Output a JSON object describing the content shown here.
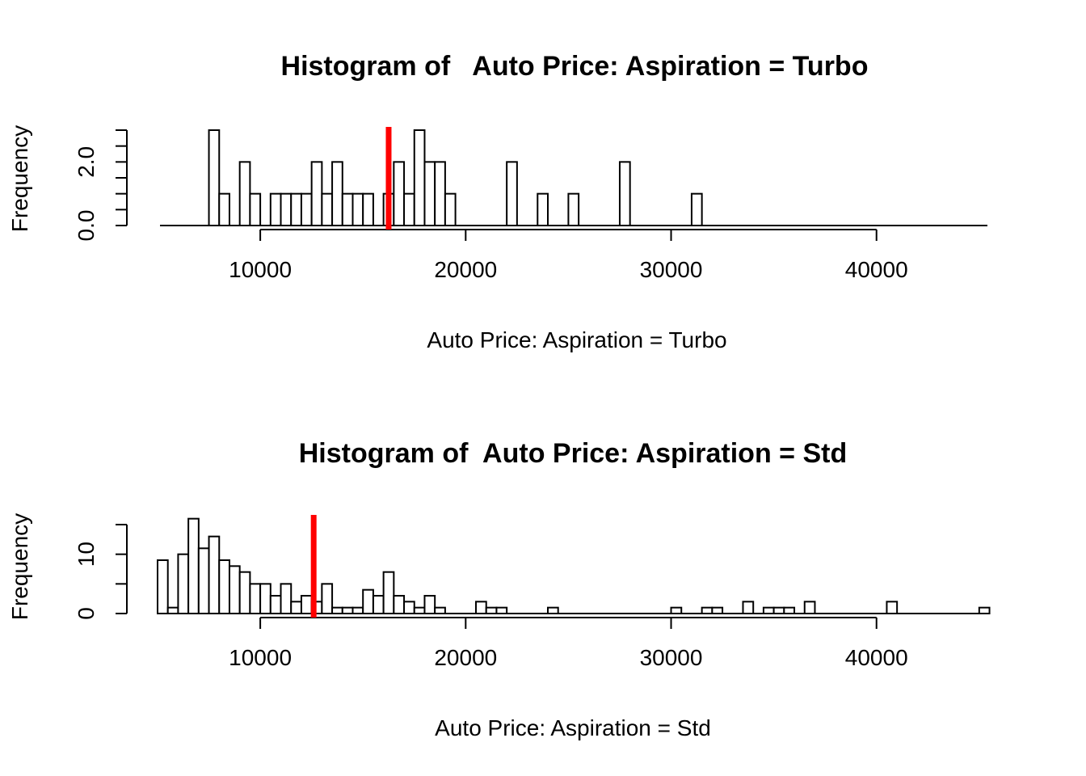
{
  "chart_data": [
    {
      "type": "bar",
      "subtype": "histogram",
      "title": "Histogram of   Auto Price: Aspiration = Turbo",
      "xlabel": "Auto Price: Aspiration = Turbo",
      "ylabel": "Frequency",
      "xlim": [
        5118,
        45400
      ],
      "ylim": [
        0,
        3
      ],
      "bin_width": 500,
      "x_ticks": [
        10000,
        20000,
        30000,
        40000
      ],
      "x_tick_labels": [
        "10000",
        "20000",
        "30000",
        "40000"
      ],
      "y_ticks": [
        0,
        0.5,
        1,
        1.5,
        2,
        2.5,
        3
      ],
      "y_tick_labels": [
        "0.0",
        "",
        "",
        "",
        "2.0",
        "",
        ""
      ],
      "bin_starts": [
        7500,
        8000,
        9000,
        9500,
        10500,
        11000,
        11500,
        12000,
        12500,
        13000,
        13500,
        14000,
        14500,
        15000,
        16000,
        16500,
        17000,
        17500,
        18000,
        18500,
        19000,
        22000,
        23500,
        25000,
        27500,
        31000
      ],
      "counts": [
        3,
        1,
        2,
        1,
        1,
        1,
        1,
        1,
        2,
        1,
        2,
        1,
        1,
        1,
        1,
        2,
        1,
        3,
        2,
        2,
        1,
        2,
        1,
        1,
        2,
        1
      ],
      "mean_line": {
        "value": 16250,
        "color": "#ff0000"
      },
      "bar_fill": "#ffffff",
      "bar_stroke": "#000000"
    },
    {
      "type": "bar",
      "subtype": "histogram",
      "title": "Histogram of  Auto Price: Aspiration = Std",
      "xlabel": "Auto Price: Aspiration = Std",
      "ylabel": "Frequency",
      "xlim": [
        5118,
        45400
      ],
      "ylim": [
        0,
        15
      ],
      "bin_width": 500,
      "x_ticks": [
        10000,
        20000,
        30000,
        40000
      ],
      "x_tick_labels": [
        "10000",
        "20000",
        "30000",
        "40000"
      ],
      "y_ticks": [
        0,
        5,
        10,
        15
      ],
      "y_tick_labels": [
        "0",
        "",
        "10",
        ""
      ],
      "bin_starts": [
        5000,
        5500,
        6000,
        6500,
        7000,
        7500,
        8000,
        8500,
        9000,
        9500,
        10000,
        10500,
        11000,
        11500,
        12000,
        12500,
        13000,
        13500,
        14000,
        14500,
        15000,
        15500,
        16000,
        16500,
        17000,
        17500,
        18000,
        18500,
        19000,
        20500,
        21000,
        21500,
        24000,
        30000,
        31500,
        32000,
        33500,
        34500,
        35000,
        35500,
        36500,
        40500,
        45000
      ],
      "counts": [
        9,
        1,
        10,
        16,
        11,
        13,
        9,
        8,
        7,
        5,
        5,
        3,
        5,
        2,
        3,
        2,
        5,
        1,
        1,
        1,
        4,
        3,
        7,
        3,
        2,
        1,
        3,
        1,
        0,
        2,
        1,
        1,
        1,
        1,
        1,
        1,
        2,
        1,
        1,
        1,
        2,
        2,
        1
      ],
      "mean_line": {
        "value": 12600,
        "color": "#ff0000"
      },
      "bar_fill": "#ffffff",
      "bar_stroke": "#000000"
    }
  ]
}
